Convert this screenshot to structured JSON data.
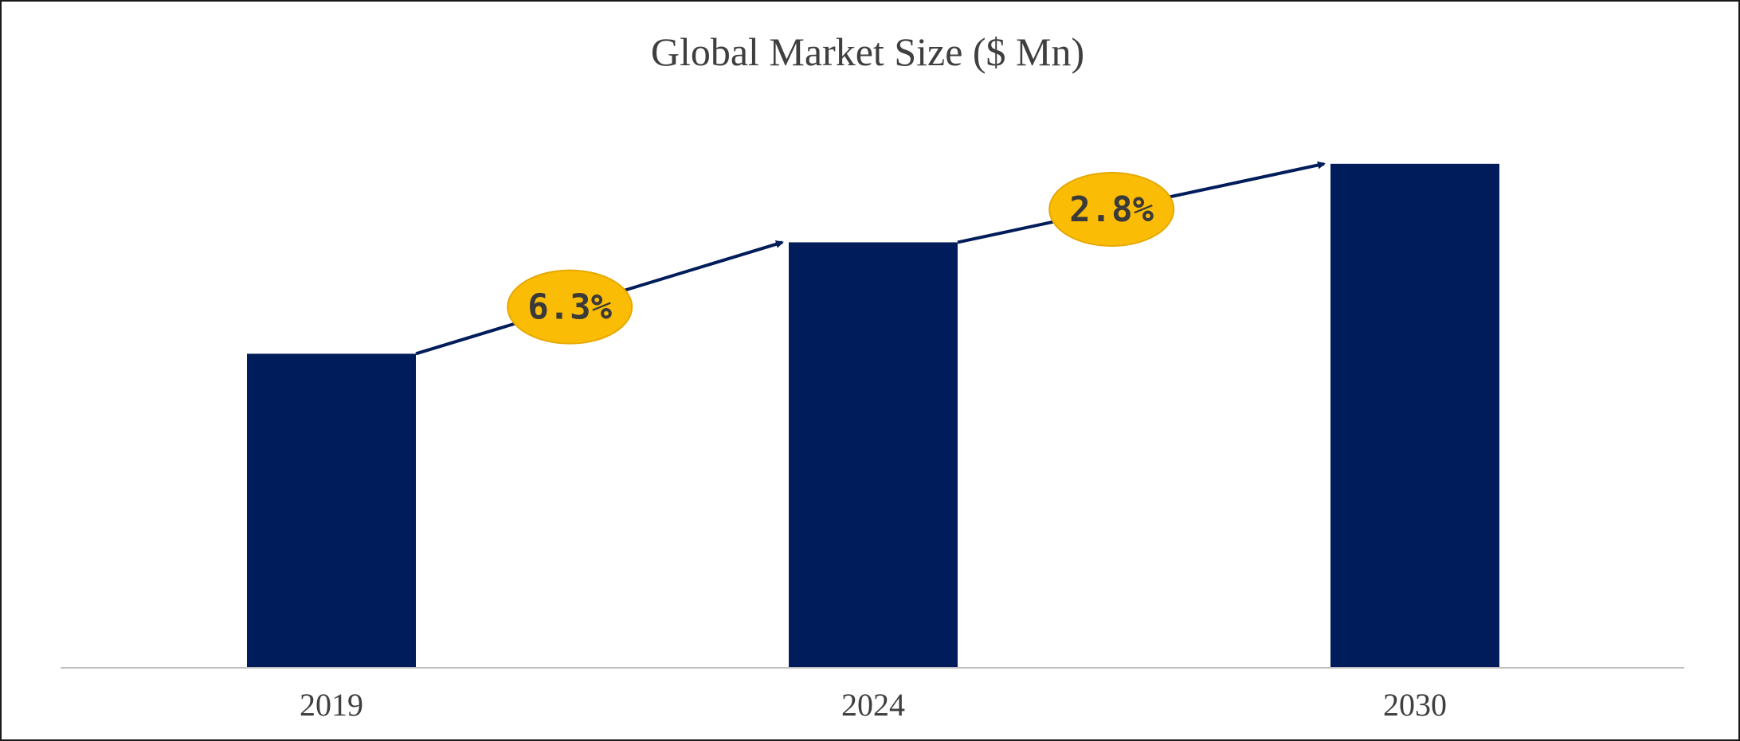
{
  "chart_data": {
    "type": "bar",
    "title": "Global Market Size ($ Mn)",
    "categories": [
      "2019",
      "2024",
      "2030"
    ],
    "values": [
      62,
      84,
      99.5
    ],
    "ylim": [
      0,
      110
    ],
    "xlabel": "",
    "ylabel": "",
    "grid": false,
    "legend": "none",
    "growth_annotations": [
      {
        "from": "2019",
        "to": "2024",
        "label": "6.3%"
      },
      {
        "from": "2024",
        "to": "2030",
        "label": "2.8%"
      }
    ],
    "colors": {
      "bar": "#001c5a",
      "arrow": "#001c5a",
      "badge": "#fbbc05",
      "axis": "#bfbfbf"
    }
  }
}
